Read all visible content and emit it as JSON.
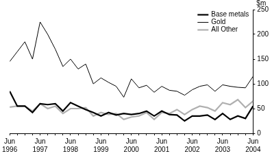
{
  "chart_data": {
    "type": "line",
    "y_label": "$m",
    "categories": [
      "Jun 1996",
      null,
      null,
      null,
      "Jun 1997",
      null,
      null,
      null,
      "Jun 1998",
      null,
      null,
      null,
      "Jun 1999",
      null,
      null,
      null,
      "Jun 2000",
      null,
      null,
      null,
      "Jun 2001",
      null,
      null,
      null,
      "Jun 2002",
      null,
      null,
      null,
      "Jun 2003",
      null,
      null,
      null,
      "Jun 2004"
    ],
    "series": [
      {
        "name": "Base metals",
        "color": "#000000",
        "line_style": "bold",
        "values": [
          85,
          55,
          55,
          42,
          60,
          58,
          60,
          45,
          62,
          55,
          48,
          42,
          35,
          42,
          37,
          40,
          38,
          40,
          45,
          35,
          45,
          38,
          37,
          25,
          35,
          35,
          37,
          28,
          40,
          28,
          35,
          30,
          55
        ]
      },
      {
        "name": "Gold",
        "color": "#000000",
        "line_style": "solid",
        "values": [
          145,
          165,
          185,
          150,
          225,
          200,
          170,
          135,
          150,
          130,
          140,
          100,
          112,
          103,
          95,
          73,
          110,
          92,
          97,
          83,
          95,
          87,
          85,
          77,
          88,
          95,
          98,
          85,
          98,
          95,
          93,
          92,
          115
        ]
      },
      {
        "name": "All Other",
        "color": "#b0b0b0",
        "line_style": "bold",
        "values": [
          53,
          55,
          55,
          45,
          60,
          50,
          55,
          40,
          50,
          50,
          52,
          35,
          42,
          38,
          40,
          28,
          33,
          35,
          42,
          28,
          42,
          40,
          48,
          38,
          48,
          55,
          52,
          45,
          62,
          58,
          68,
          52,
          65
        ]
      }
    ],
    "ylim": [
      0,
      250
    ],
    "yticks": [
      0,
      50,
      100,
      150,
      200,
      250
    ],
    "grid": false,
    "legend": "top-right"
  }
}
